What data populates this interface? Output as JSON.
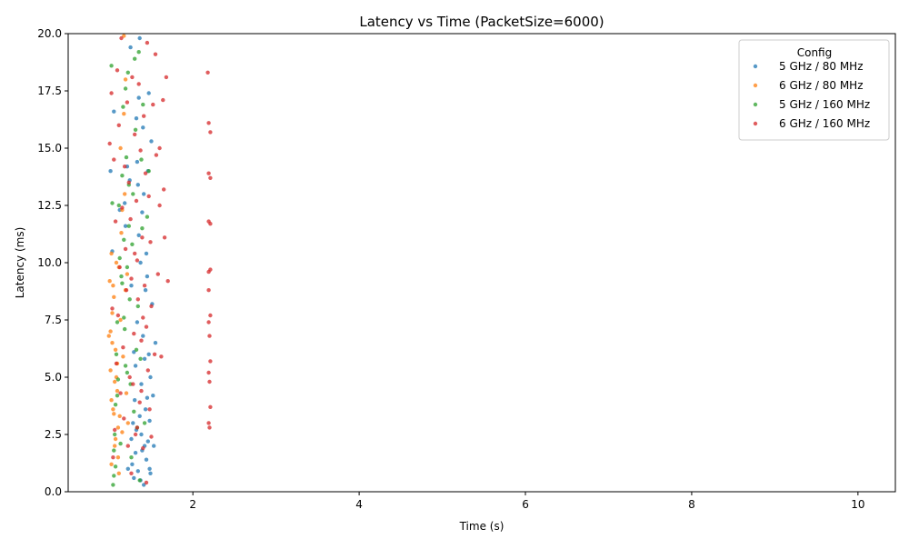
{
  "chart_data": {
    "type": "scatter",
    "title": "Latency vs Time (PacketSize=6000)",
    "xlabel": "Time (s)",
    "ylabel": "Latency (ms)",
    "xlim": [
      0.5,
      10.45
    ],
    "ylim": [
      0,
      20
    ],
    "xticks": [
      2,
      4,
      6,
      8,
      10
    ],
    "yticks": [
      0.0,
      2.5,
      5.0,
      7.5,
      10.0,
      12.5,
      15.0,
      17.5,
      20.0
    ],
    "grid": false,
    "legend": {
      "title": "Config",
      "placement": "top-right"
    },
    "series": [
      {
        "name": "5 GHz / 80 MHz",
        "color": "#1f77b4",
        "points": [
          [
            1.01,
            14.0
          ],
          [
            1.03,
            10.5
          ],
          [
            1.05,
            16.6
          ],
          [
            1.12,
            12.3
          ],
          [
            1.18,
            12.6
          ],
          [
            1.19,
            11.6
          ],
          [
            1.21,
            14.2
          ],
          [
            1.22,
            1.0
          ],
          [
            1.24,
            13.6
          ],
          [
            1.25,
            19.4
          ],
          [
            1.26,
            2.3
          ],
          [
            1.27,
            1.2
          ],
          [
            1.28,
            3.0
          ],
          [
            1.29,
            0.6
          ],
          [
            1.3,
            4.0
          ],
          [
            1.31,
            1.7
          ],
          [
            1.32,
            16.3
          ],
          [
            1.33,
            14.4
          ],
          [
            1.34,
            13.4
          ],
          [
            1.35,
            17.2
          ],
          [
            1.36,
            3.3
          ],
          [
            1.37,
            0.5
          ],
          [
            1.38,
            2.5
          ],
          [
            1.39,
            1.8
          ],
          [
            1.4,
            6.8
          ],
          [
            1.41,
            0.3
          ],
          [
            1.42,
            2.0
          ],
          [
            1.43,
            8.8
          ],
          [
            1.44,
            1.4
          ],
          [
            1.45,
            4.1
          ],
          [
            1.46,
            2.2
          ],
          [
            1.47,
            6.0
          ],
          [
            1.48,
            1.0
          ],
          [
            1.49,
            0.8
          ],
          [
            1.5,
            15.3
          ],
          [
            1.52,
            4.2
          ],
          [
            1.53,
            2.0
          ],
          [
            1.55,
            6.5
          ],
          [
            1.26,
            9.0
          ],
          [
            1.31,
            5.5
          ],
          [
            1.33,
            7.4
          ],
          [
            1.35,
            11.2
          ],
          [
            1.37,
            10.0
          ],
          [
            1.39,
            12.2
          ],
          [
            1.41,
            13.0
          ],
          [
            1.43,
            3.6
          ],
          [
            1.45,
            9.4
          ],
          [
            1.47,
            17.4
          ],
          [
            1.49,
            5.0
          ],
          [
            1.51,
            8.2
          ],
          [
            1.36,
            19.8
          ],
          [
            1.29,
            6.1
          ],
          [
            1.38,
            4.7
          ],
          [
            1.42,
            5.8
          ],
          [
            1.44,
            10.4
          ],
          [
            1.46,
            14.0
          ],
          [
            1.48,
            3.1
          ],
          [
            1.4,
            15.9
          ],
          [
            1.32,
            2.7
          ],
          [
            1.34,
            0.9
          ]
        ]
      },
      {
        "name": "6 GHz / 80 MHz",
        "color": "#ff7f0e",
        "points": [
          [
            0.99,
            6.8
          ],
          [
            1.0,
            9.2
          ],
          [
            1.01,
            5.3
          ],
          [
            1.02,
            4.0
          ],
          [
            1.02,
            10.4
          ],
          [
            1.03,
            7.8
          ],
          [
            1.04,
            3.6
          ],
          [
            1.05,
            8.5
          ],
          [
            1.06,
            2.0
          ],
          [
            1.07,
            6.2
          ],
          [
            1.08,
            5.0
          ],
          [
            1.09,
            4.4
          ],
          [
            1.1,
            1.5
          ],
          [
            1.11,
            9.8
          ],
          [
            1.12,
            3.3
          ],
          [
            1.13,
            15.0
          ],
          [
            1.14,
            11.3
          ],
          [
            1.15,
            2.6
          ],
          [
            1.16,
            5.9
          ],
          [
            1.17,
            19.9
          ],
          [
            1.18,
            13.0
          ],
          [
            1.19,
            8.8
          ],
          [
            1.2,
            4.3
          ],
          [
            1.21,
            9.5
          ],
          [
            1.22,
            3.0
          ],
          [
            1.01,
            7.0
          ],
          [
            1.03,
            6.5
          ],
          [
            1.05,
            3.4
          ],
          [
            1.07,
            2.3
          ],
          [
            1.09,
            5.6
          ],
          [
            1.11,
            0.8
          ],
          [
            1.13,
            7.5
          ],
          [
            1.15,
            12.3
          ],
          [
            1.17,
            16.5
          ],
          [
            1.19,
            18.0
          ],
          [
            1.02,
            1.2
          ],
          [
            1.04,
            9.0
          ],
          [
            1.06,
            4.8
          ],
          [
            1.08,
            10.0
          ],
          [
            1.1,
            2.8
          ]
        ]
      },
      {
        "name": "5 GHz / 160 MHz",
        "color": "#2ca02c",
        "points": [
          [
            1.02,
            18.6
          ],
          [
            1.04,
            0.3
          ],
          [
            1.05,
            1.8
          ],
          [
            1.06,
            2.5
          ],
          [
            1.07,
            3.8
          ],
          [
            1.08,
            6.0
          ],
          [
            1.09,
            7.4
          ],
          [
            1.1,
            4.9
          ],
          [
            1.11,
            12.5
          ],
          [
            1.12,
            10.2
          ],
          [
            1.14,
            9.4
          ],
          [
            1.15,
            13.8
          ],
          [
            1.16,
            16.8
          ],
          [
            1.17,
            11.0
          ],
          [
            1.18,
            7.1
          ],
          [
            1.19,
            5.5
          ],
          [
            1.2,
            14.6
          ],
          [
            1.21,
            9.8
          ],
          [
            1.22,
            18.3
          ],
          [
            1.23,
            11.6
          ],
          [
            1.24,
            8.4
          ],
          [
            1.25,
            4.7
          ],
          [
            1.26,
            1.5
          ],
          [
            1.27,
            10.8
          ],
          [
            1.28,
            13.0
          ],
          [
            1.29,
            3.5
          ],
          [
            1.3,
            18.9
          ],
          [
            1.31,
            15.8
          ],
          [
            1.32,
            6.2
          ],
          [
            1.33,
            2.8
          ],
          [
            1.34,
            8.1
          ],
          [
            1.35,
            19.2
          ],
          [
            1.36,
            0.5
          ],
          [
            1.37,
            5.8
          ],
          [
            1.38,
            14.5
          ],
          [
            1.39,
            11.5
          ],
          [
            1.4,
            16.9
          ],
          [
            1.42,
            3.0
          ],
          [
            1.45,
            12.0
          ],
          [
            1.47,
            14.0
          ],
          [
            1.03,
            12.6
          ],
          [
            1.05,
            0.7
          ],
          [
            1.07,
            1.1
          ],
          [
            1.09,
            4.2
          ],
          [
            1.13,
            2.1
          ],
          [
            1.15,
            9.1
          ],
          [
            1.17,
            7.6
          ],
          [
            1.19,
            17.6
          ],
          [
            1.21,
            5.2
          ],
          [
            1.23,
            13.4
          ]
        ]
      },
      {
        "name": "6 GHz / 160 MHz",
        "color": "#d62728",
        "points": [
          [
            1.0,
            15.2
          ],
          [
            1.02,
            17.4
          ],
          [
            1.03,
            8.0
          ],
          [
            1.04,
            1.5
          ],
          [
            1.05,
            14.5
          ],
          [
            1.06,
            2.7
          ],
          [
            1.07,
            11.8
          ],
          [
            1.08,
            5.6
          ],
          [
            1.09,
            18.4
          ],
          [
            1.1,
            7.7
          ],
          [
            1.11,
            16.0
          ],
          [
            1.12,
            9.8
          ],
          [
            1.13,
            4.3
          ],
          [
            1.14,
            19.8
          ],
          [
            1.15,
            12.4
          ],
          [
            1.16,
            6.3
          ],
          [
            1.17,
            3.2
          ],
          [
            1.18,
            14.2
          ],
          [
            1.19,
            10.6
          ],
          [
            1.2,
            8.8
          ],
          [
            1.21,
            17.0
          ],
          [
            1.22,
            2.0
          ],
          [
            1.23,
            13.5
          ],
          [
            1.24,
            5.0
          ],
          [
            1.25,
            11.9
          ],
          [
            1.26,
            9.3
          ],
          [
            1.27,
            18.1
          ],
          [
            1.28,
            4.7
          ],
          [
            1.29,
            6.9
          ],
          [
            1.3,
            15.6
          ],
          [
            1.31,
            2.5
          ],
          [
            1.32,
            12.7
          ],
          [
            1.33,
            10.1
          ],
          [
            1.34,
            8.4
          ],
          [
            1.35,
            17.8
          ],
          [
            1.36,
            3.9
          ],
          [
            1.37,
            14.9
          ],
          [
            1.38,
            6.6
          ],
          [
            1.39,
            11.1
          ],
          [
            1.4,
            1.9
          ],
          [
            1.41,
            16.4
          ],
          [
            1.42,
            9.0
          ],
          [
            1.43,
            13.9
          ],
          [
            1.44,
            7.2
          ],
          [
            1.45,
            19.6
          ],
          [
            1.46,
            5.3
          ],
          [
            1.47,
            12.9
          ],
          [
            1.48,
            3.6
          ],
          [
            1.49,
            10.9
          ],
          [
            1.5,
            8.1
          ],
          [
            1.52,
            16.9
          ],
          [
            1.54,
            6.0
          ],
          [
            1.56,
            14.7
          ],
          [
            1.58,
            9.5
          ],
          [
            1.6,
            12.5
          ],
          [
            1.62,
            5.9
          ],
          [
            1.64,
            17.1
          ],
          [
            1.66,
            11.1
          ],
          [
            1.68,
            18.1
          ],
          [
            1.7,
            9.2
          ],
          [
            1.26,
            0.8
          ],
          [
            1.33,
            2.8
          ],
          [
            1.38,
            4.4
          ],
          [
            1.44,
            0.4
          ],
          [
            1.5,
            2.4
          ],
          [
            1.55,
            19.1
          ],
          [
            1.6,
            15.0
          ],
          [
            1.65,
            13.2
          ],
          [
            1.4,
            7.6
          ],
          [
            1.3,
            10.4
          ],
          [
            2.18,
            18.3
          ],
          [
            2.19,
            16.1
          ],
          [
            2.21,
            15.7
          ],
          [
            2.19,
            13.9
          ],
          [
            2.21,
            13.7
          ],
          [
            2.19,
            11.8
          ],
          [
            2.21,
            11.7
          ],
          [
            2.19,
            9.6
          ],
          [
            2.21,
            9.7
          ],
          [
            2.19,
            8.8
          ],
          [
            2.21,
            7.7
          ],
          [
            2.19,
            7.4
          ],
          [
            2.2,
            6.8
          ],
          [
            2.21,
            5.7
          ],
          [
            2.19,
            5.2
          ],
          [
            2.2,
            4.8
          ],
          [
            2.21,
            3.7
          ],
          [
            2.19,
            3.0
          ],
          [
            2.2,
            2.8
          ]
        ]
      }
    ]
  }
}
